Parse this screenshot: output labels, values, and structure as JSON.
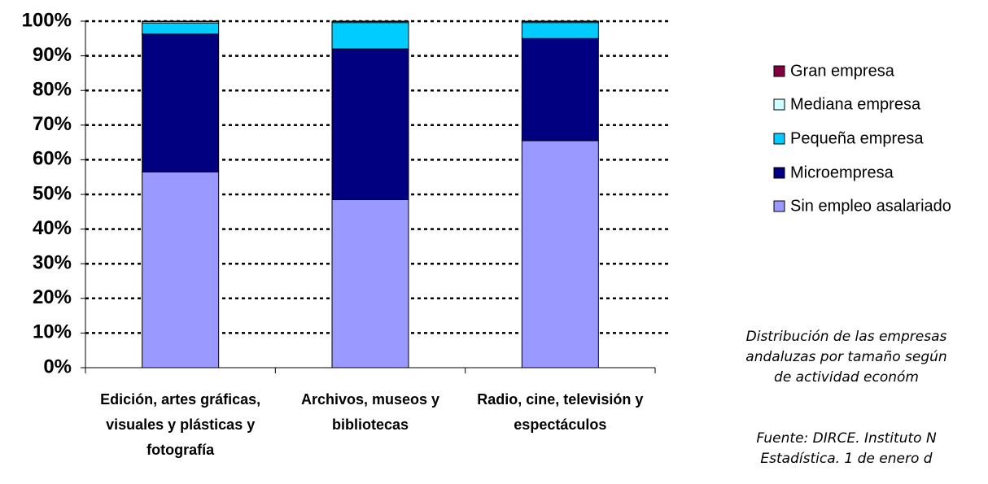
{
  "chart_data": {
    "type": "stacked_bar",
    "categories": [
      "Edición, artes gráficas, visuales y plásticas y fotografía",
      "Archivos, museos y bibliotecas",
      "Radio, cine, televisión y espectáculos"
    ],
    "series": [
      {
        "name": "Sin empleo asalariado",
        "color": "#9999ff",
        "values": [
          56.5,
          48.5,
          65.5
        ]
      },
      {
        "name": "Microempresa",
        "color": "#000080",
        "values": [
          39.8,
          43.5,
          29.5
        ]
      },
      {
        "name": "Pequeña empresa",
        "color": "#00ccff",
        "values": [
          3.2,
          7.6,
          4.6
        ]
      },
      {
        "name": "Mediana empresa",
        "color": "#ccffff",
        "values": [
          0.4,
          0.3,
          0.3
        ]
      },
      {
        "name": "Gran empresa",
        "color": "#800040",
        "values": [
          0.1,
          0.1,
          0.1
        ]
      }
    ],
    "ylim": [
      0,
      100
    ],
    "yticks": [
      {
        "value": 0,
        "label": "0%"
      },
      {
        "value": 10,
        "label": "10%"
      },
      {
        "value": 20,
        "label": "20%"
      },
      {
        "value": 30,
        "label": "30%"
      },
      {
        "value": 40,
        "label": "40%"
      },
      {
        "value": 50,
        "label": "50%"
      },
      {
        "value": 60,
        "label": "60%"
      },
      {
        "value": 70,
        "label": "70%"
      },
      {
        "value": 80,
        "label": "80%"
      },
      {
        "value": 90,
        "label": "90%"
      },
      {
        "value": 100,
        "label": "100%"
      }
    ],
    "grid": true,
    "legend": "right",
    "annotations": [
      [
        "Distribución de las empresas",
        "andaluzas por tamaño según",
        "de actividad económ"
      ],
      [
        "Fuente: DIRCE. Instituto N",
        "Estadística. 1 de enero d"
      ]
    ]
  }
}
